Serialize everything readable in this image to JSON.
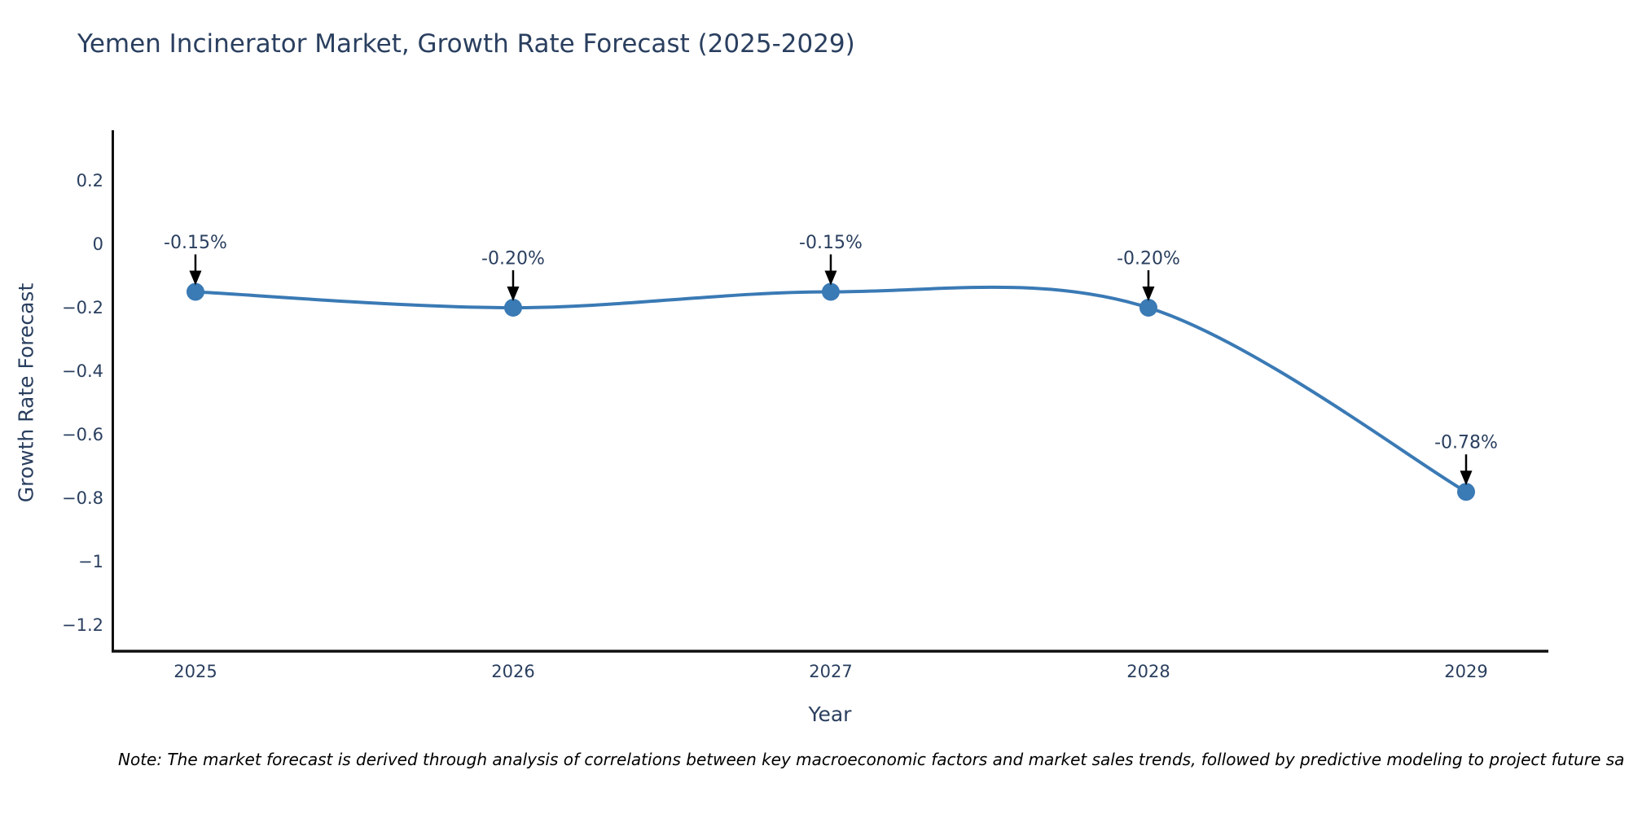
{
  "title": "Yemen Incinerator Market, Growth Rate Forecast (2025-2029)",
  "note": "Note: The market forecast is derived through analysis of correlations between key macroeconomic factors and market sales trends, followed by predictive modeling to project future sa",
  "chart_data": {
    "type": "line",
    "title": "Yemen Incinerator Market, Growth Rate Forecast (2025-2029)",
    "xlabel": "Year",
    "ylabel": "Growth Rate Forecast",
    "x": [
      2025,
      2026,
      2027,
      2028,
      2029
    ],
    "x_tick_labels": [
      "2025",
      "2026",
      "2027",
      "2028",
      "2029"
    ],
    "series": [
      {
        "name": "Growth Rate Forecast",
        "values": [
          -0.15,
          -0.2,
          -0.15,
          -0.2,
          -0.78
        ],
        "point_labels": [
          "-0.15%",
          "-0.20%",
          "-0.15%",
          "-0.20%",
          "-0.78%"
        ]
      }
    ],
    "y_ticks": [
      0.2,
      0,
      -0.2,
      -0.4,
      -0.6,
      -0.8,
      -1,
      -1.2
    ],
    "y_tick_labels": [
      "0.2",
      "0",
      "−0.2",
      "−0.4",
      "−0.6",
      "−0.8",
      "−1",
      "−1.2"
    ],
    "xlim": [
      2024.736,
      2029.259
    ],
    "ylim": [
      -1.282,
      0.359
    ],
    "line_shape": "spline",
    "grid": false,
    "legend": "none",
    "colors": {
      "line": "#3a7ab5",
      "marker": "#3a7ab5",
      "axis": "#101010",
      "text": "#2a3f5f",
      "arrow": "#000000",
      "background": "#ffffff"
    }
  }
}
